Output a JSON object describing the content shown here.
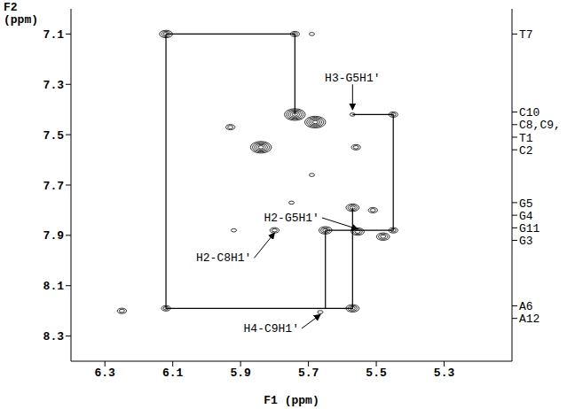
{
  "chart_data": {
    "type": "contour",
    "x_label": "F1 (ppm)",
    "y_label": "F2 (ppm)",
    "color": "#000000",
    "xlim": [
      6.4,
      5.1
    ],
    "xticks": [
      6.3,
      6.1,
      5.9,
      5.7,
      5.5,
      5.3
    ],
    "ylim": [
      8.4,
      7.0
    ],
    "yticks": [
      7.1,
      7.3,
      7.5,
      7.7,
      7.9,
      8.1,
      8.3
    ],
    "y2lim": [
      8.4,
      7.0
    ],
    "y2ticks": [
      {
        "value": 7.1,
        "label": "T7"
      },
      {
        "value": 7.41,
        "label": "C10"
      },
      {
        "value": 7.46,
        "label": "C8,C9,"
      },
      {
        "value": 7.51,
        "label": "T1"
      },
      {
        "value": 7.56,
        "label": "C2"
      },
      {
        "value": 7.77,
        "label": "G5"
      },
      {
        "value": 7.82,
        "label": "G4"
      },
      {
        "value": 7.87,
        "label": "G11"
      },
      {
        "value": 7.92,
        "label": "G3"
      },
      {
        "value": 8.18,
        "label": "A6"
      },
      {
        "value": 8.23,
        "label": "A12"
      }
    ],
    "peaks": {
      "x": [
        6.12,
        5.74,
        5.69,
        5.74,
        5.68,
        5.93,
        5.84,
        5.69,
        5.56,
        5.57,
        5.45,
        5.57,
        5.51,
        5.92,
        5.8,
        5.65,
        5.555,
        5.48,
        5.45,
        5.75,
        6.25,
        6.12,
        5.665,
        5.57
      ],
      "y": [
        7.1,
        7.1,
        7.1,
        7.42,
        7.45,
        7.47,
        7.55,
        7.66,
        7.55,
        7.42,
        7.42,
        7.79,
        7.8,
        7.88,
        7.88,
        7.88,
        7.885,
        7.905,
        7.88,
        7.77,
        8.2,
        8.19,
        8.205,
        8.19
      ],
      "levels": [
        3,
        2,
        1,
        5,
        5,
        2,
        5,
        1,
        2,
        1,
        2,
        3,
        2,
        1,
        2,
        3,
        3,
        3,
        2,
        1,
        2,
        2,
        1,
        3
      ]
    },
    "connectivity": [
      {
        "x": [
          6.12,
          5.74,
          5.74
        ],
        "y": [
          7.1,
          7.1,
          7.42
        ]
      },
      {
        "x": [
          6.12,
          6.12,
          5.57,
          5.57
        ],
        "y": [
          7.1,
          8.19,
          8.19,
          7.79
        ]
      },
      {
        "x": [
          5.65,
          5.65
        ],
        "y": [
          7.88,
          8.19
        ]
      },
      {
        "x": [
          5.57,
          5.45,
          5.45,
          5.65
        ],
        "y": [
          7.42,
          7.42,
          7.88,
          7.88
        ]
      }
    ],
    "annotations": [
      {
        "text": "H3-G5H1'",
        "xy": [
          5.57,
          7.4
        ],
        "xytext": [
          5.57,
          7.3
        ]
      },
      {
        "text": "H2-G5H1'",
        "xy": [
          5.555,
          7.875
        ],
        "xytext": [
          5.66,
          7.83
        ]
      },
      {
        "text": "H2-C8H1'",
        "xy": [
          5.8,
          7.89
        ],
        "xytext": [
          5.86,
          7.99
        ]
      },
      {
        "text": "H4-C9H1'",
        "xy": [
          5.665,
          8.215
        ],
        "xytext": [
          5.72,
          8.27
        ]
      }
    ]
  }
}
